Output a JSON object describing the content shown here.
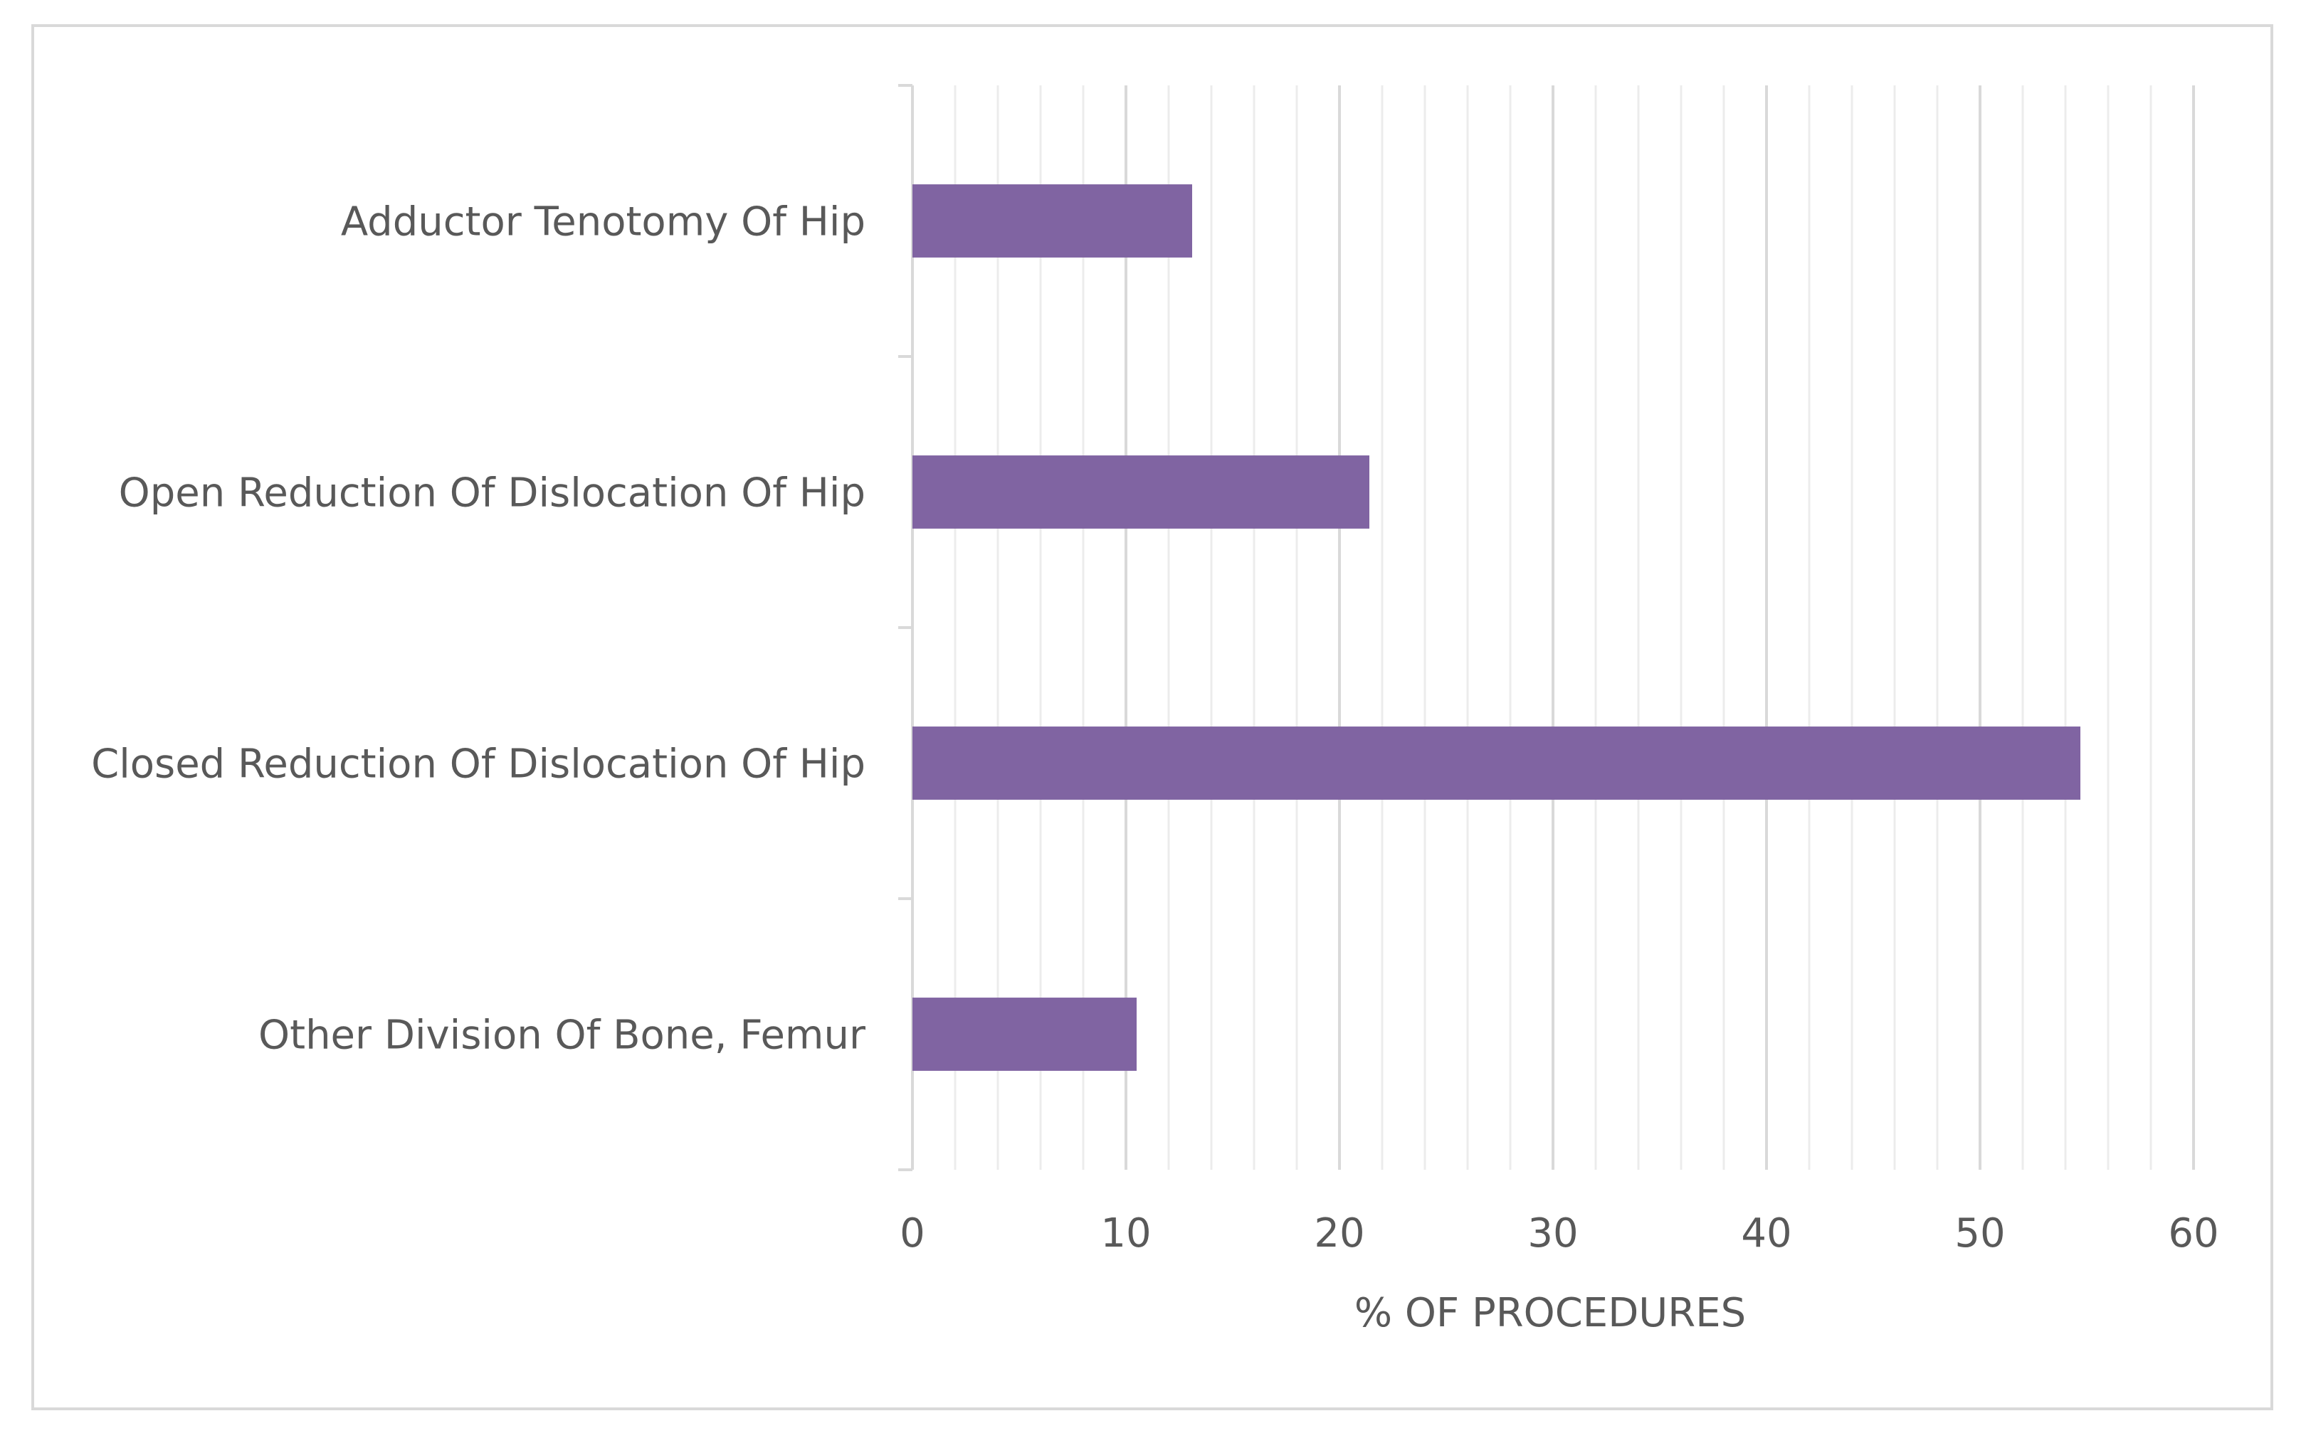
{
  "chart_data": {
    "type": "bar",
    "orientation": "horizontal",
    "categories": [
      "Adductor Tenotomy Of Hip",
      "Open Reduction Of Dislocation Of Hip",
      "Closed Reduction Of Dislocation Of Hip",
      "Other Division Of Bone, Femur"
    ],
    "values": [
      13.1,
      21.4,
      54.7,
      10.5
    ],
    "xlabel": "% OF PROCEDURES",
    "xlim": [
      0,
      60
    ],
    "xticks": [
      0,
      10,
      20,
      30,
      40,
      50,
      60
    ],
    "grid": true,
    "bar_color": "#8064a2"
  }
}
